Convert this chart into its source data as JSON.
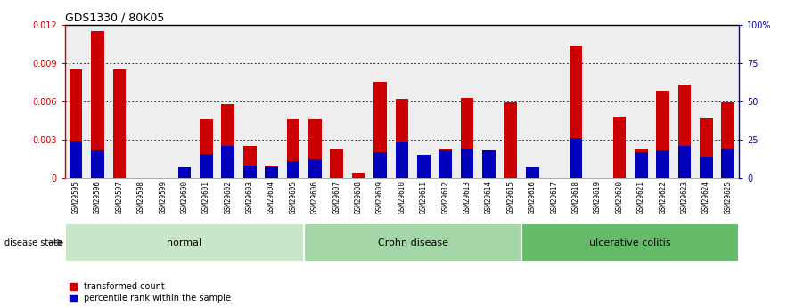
{
  "title": "GDS1330 / 80K05",
  "samples": [
    "GSM29595",
    "GSM29596",
    "GSM29597",
    "GSM29598",
    "GSM29599",
    "GSM29600",
    "GSM29601",
    "GSM29602",
    "GSM29603",
    "GSM29604",
    "GSM29605",
    "GSM29606",
    "GSM29607",
    "GSM29608",
    "GSM29609",
    "GSM29610",
    "GSM29611",
    "GSM29612",
    "GSM29613",
    "GSM29614",
    "GSM29615",
    "GSM29616",
    "GSM29617",
    "GSM29618",
    "GSM29619",
    "GSM29620",
    "GSM29621",
    "GSM29622",
    "GSM29623",
    "GSM29624",
    "GSM29625"
  ],
  "transformed_count": [
    0.0085,
    0.0115,
    0.0085,
    0.0,
    0.0,
    0.0,
    0.0046,
    0.0058,
    0.0025,
    0.001,
    0.0046,
    0.0046,
    0.0022,
    0.0004,
    0.0075,
    0.0062,
    0.0018,
    0.0022,
    0.0063,
    0.0,
    0.0059,
    0.0,
    0.0,
    0.0103,
    0.0,
    0.0048,
    0.0023,
    0.0068,
    0.0073,
    0.0047,
    0.0059
  ],
  "percentile_rank_pct": [
    24,
    18,
    0,
    0,
    0,
    7,
    16,
    21,
    8,
    7,
    11,
    12,
    0,
    0,
    17,
    23,
    15,
    18,
    19,
    18,
    0,
    7,
    0,
    26,
    0,
    0,
    17,
    18,
    21,
    14,
    19
  ],
  "groups": [
    {
      "label": "normal",
      "start": 0,
      "end": 11,
      "color": "#c8e6c9"
    },
    {
      "label": "Crohn disease",
      "start": 11,
      "end": 21,
      "color": "#a5d6a7"
    },
    {
      "label": "ulcerative colitis",
      "start": 21,
      "end": 31,
      "color": "#66bb6a"
    }
  ],
  "ylim_left": [
    0,
    0.012
  ],
  "ylim_right": [
    0,
    100
  ],
  "yticks_left": [
    0,
    0.003,
    0.006,
    0.009,
    0.012
  ],
  "ytick_labels_left": [
    "0",
    "0.003",
    "0.006",
    "0.009",
    "0.012"
  ],
  "yticks_right": [
    0,
    25,
    50,
    75,
    100
  ],
  "ytick_labels_right": [
    "0",
    "25",
    "50",
    "75",
    "100%"
  ],
  "red_color": "#cc0000",
  "blue_color": "#0000bb",
  "bg_color": "#eeeeee",
  "grid_color": "#000000",
  "bar_width": 0.6
}
